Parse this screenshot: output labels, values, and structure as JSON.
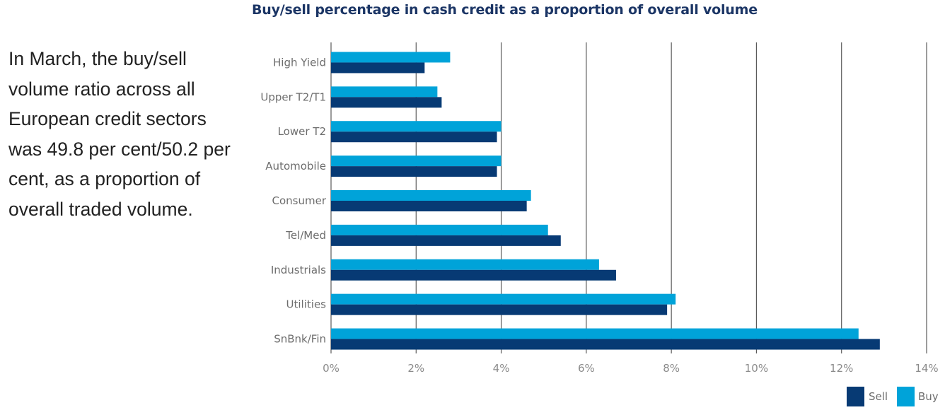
{
  "side_text": "In March, the buy/sell volume ratio across all European credit sectors was 49.8 per cent/50.2 per cent, as a proportion of overall traded volume.",
  "chart_data": {
    "type": "bar",
    "orientation": "horizontal",
    "title": "Buy/sell percentage in cash credit as a proportion of overall volume",
    "xlabel": "",
    "ylabel": "",
    "categories": [
      "High Yield",
      "Upper T2/T1",
      "Lower T2",
      "Automobile",
      "Consumer",
      "Tel/Med",
      "Industrials",
      "Utilities",
      "SnBnk/Fin"
    ],
    "series": [
      {
        "name": "Buy",
        "color": "#00a3d9",
        "values": [
          2.8,
          2.5,
          4.0,
          4.0,
          4.7,
          5.1,
          6.3,
          8.1,
          12.4
        ]
      },
      {
        "name": "Sell",
        "color": "#073a74",
        "values": [
          2.2,
          2.6,
          3.9,
          3.9,
          4.6,
          5.4,
          6.7,
          7.9,
          12.9
        ]
      }
    ],
    "xlim": [
      0,
      14
    ],
    "x_ticks": [
      "0%",
      "2%",
      "4%",
      "6%",
      "8%",
      "10%",
      "12%",
      "14%"
    ],
    "grid": "vertical",
    "legend": {
      "placement": "bottom-right",
      "entries": [
        "Sell",
        "Buy"
      ]
    }
  }
}
